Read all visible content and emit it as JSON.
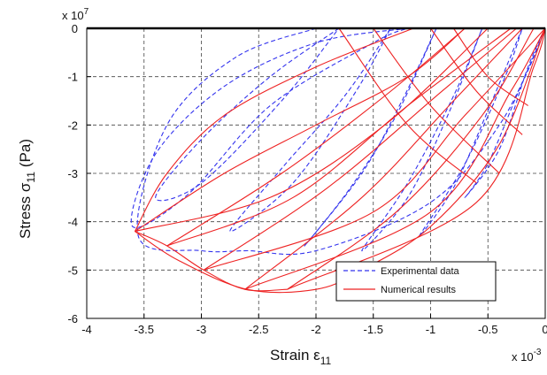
{
  "chart_data": {
    "type": "line",
    "xlabel": {
      "main": "Strain ε",
      "sub": "11"
    },
    "ylabel": {
      "main": "Stress σ",
      "sub": "11",
      "unit": "(Pa)"
    },
    "x_multiplier": {
      "base": "x 10",
      "exp": "-3"
    },
    "y_multiplier": {
      "base": "x 10",
      "exp": "7"
    },
    "xlim": [
      -4,
      0
    ],
    "ylim": [
      -6,
      0
    ],
    "xticks": [
      "-4",
      "-3.5",
      "-3",
      "-2.5",
      "-2",
      "-1.5",
      "-1",
      "-0.5",
      "0"
    ],
    "yticks": [
      "0",
      "-1",
      "-2",
      "-3",
      "-4",
      "-5",
      "-6"
    ],
    "grid": true,
    "legend_position": "bottom-right",
    "series": [
      {
        "name": "Experimental data",
        "color": "#3333ee",
        "style": "dashed",
        "curves": [
          [
            [
              0,
              0
            ],
            [
              -0.1,
              -0.6
            ],
            [
              -0.25,
              -1.4
            ],
            [
              -0.5,
              -2.8
            ],
            [
              -0.7,
              -3.5
            ],
            [
              -0.4,
              -2.5
            ],
            [
              -0.15,
              -0.8
            ],
            [
              0,
              0
            ]
          ],
          [
            [
              -0.2,
              0
            ],
            [
              -0.5,
              -1.7
            ],
            [
              -0.8,
              -3.3
            ],
            [
              -1.1,
              -4.3
            ],
            [
              -0.7,
              -2.8
            ],
            [
              -0.35,
              -1.0
            ],
            [
              -0.2,
              0
            ]
          ],
          [
            [
              -0.55,
              0
            ],
            [
              -0.85,
              -1.8
            ],
            [
              -1.2,
              -3.5
            ],
            [
              -1.6,
              -4.6
            ],
            [
              -1.2,
              -3.2
            ],
            [
              -0.8,
              -1.4
            ],
            [
              -0.55,
              0
            ]
          ],
          [
            [
              -0.95,
              0
            ],
            [
              -1.3,
              -1.8
            ],
            [
              -1.7,
              -3.3
            ],
            [
              -2.1,
              -4.5
            ],
            [
              -1.6,
              -3.0
            ],
            [
              -1.25,
              -1.5
            ],
            [
              -0.95,
              0
            ]
          ],
          [
            [
              -1.35,
              0
            ],
            [
              -1.75,
              -1.4
            ],
            [
              -2.3,
              -2.9
            ],
            [
              -2.75,
              -4.2
            ],
            [
              -2.2,
              -3.2
            ],
            [
              -1.65,
              -1.3
            ],
            [
              -1.35,
              0
            ]
          ],
          [
            [
              -1.8,
              0
            ],
            [
              -2.4,
              -1.0
            ],
            [
              -3.0,
              -2.3
            ],
            [
              -3.4,
              -3.5
            ],
            [
              -3.0,
              -3.2
            ],
            [
              -2.3,
              -1.5
            ],
            [
              -1.8,
              0
            ]
          ],
          [
            [
              -1.2,
              0
            ],
            [
              -2.0,
              -0.3
            ],
            [
              -2.8,
              -1.2
            ],
            [
              -3.4,
              -2.6
            ],
            [
              -3.6,
              -4.1
            ],
            [
              -3.1,
              -3.4
            ],
            [
              -2.4,
              -1.6
            ],
            [
              -1.5,
              -0.3
            ],
            [
              -1.2,
              0
            ]
          ],
          [
            [
              -2.0,
              0
            ],
            [
              -2.7,
              -0.6
            ],
            [
              -3.3,
              -2.0
            ],
            [
              -3.55,
              -4.3
            ],
            [
              -3.0,
              -4.6
            ],
            [
              -2.6,
              -4.6
            ],
            [
              -2.0,
              -4.6
            ],
            [
              -1.0,
              -3.6
            ],
            [
              -0.4,
              -2.0
            ],
            [
              -0.05,
              -0.3
            ]
          ]
        ]
      },
      {
        "name": "Numerical results",
        "color": "#ee2222",
        "style": "solid",
        "curves": [
          [
            [
              -1.15,
              0
            ],
            [
              -2.0,
              -0.8
            ],
            [
              -2.8,
              -1.8
            ],
            [
              -3.3,
              -3.0
            ],
            [
              -3.58,
              -4.2
            ]
          ],
          [
            [
              -3.58,
              -4.2
            ],
            [
              -3.2,
              -4.8
            ],
            [
              -2.6,
              -5.4
            ],
            [
              -2.0,
              -5.4
            ],
            [
              -1.6,
              -5.0
            ],
            [
              -1.0,
              -4.1
            ],
            [
              -0.4,
              -2.4
            ],
            [
              0,
              0
            ]
          ],
          [
            [
              -3.58,
              -4.2
            ],
            [
              -2.8,
              -3.0
            ],
            [
              -2.0,
              -2.0
            ],
            [
              -1.2,
              -1.0
            ],
            [
              -0.7,
              0
            ]
          ],
          [
            [
              -3.58,
              -4.2
            ],
            [
              -2.4,
              -3.5
            ],
            [
              -1.4,
              -2.0
            ],
            [
              -0.5,
              0
            ]
          ],
          [
            [
              -3.3,
              -4.5
            ],
            [
              -2.3,
              -3.0
            ],
            [
              -1.4,
              -1.4
            ],
            [
              -0.7,
              0
            ]
          ],
          [
            [
              -3.3,
              -4.5
            ],
            [
              -2.2,
              -3.5
            ],
            [
              -1.2,
              -1.6
            ],
            [
              -0.3,
              0
            ]
          ],
          [
            [
              -2.98,
              -5.0
            ],
            [
              -1.9,
              -3.3
            ],
            [
              -0.9,
              -1.3
            ],
            [
              -0.25,
              0
            ]
          ],
          [
            [
              -2.98,
              -5.0
            ],
            [
              -1.5,
              -3.8
            ],
            [
              -0.7,
              -1.8
            ],
            [
              0,
              0
            ]
          ],
          [
            [
              -2.62,
              -5.4
            ],
            [
              -1.6,
              -3.5
            ],
            [
              -0.8,
              -1.5
            ],
            [
              -0.2,
              0
            ]
          ],
          [
            [
              -2.62,
              -5.4
            ],
            [
              -1.0,
              -3.8
            ],
            [
              -0.3,
              -1.3
            ],
            [
              0,
              0
            ]
          ],
          [
            [
              -2.25,
              -5.4
            ],
            [
              -1.3,
              -3.8
            ],
            [
              -0.55,
              -1.8
            ],
            [
              -0.1,
              0
            ]
          ],
          [
            [
              -2.25,
              -5.4
            ],
            [
              -0.6,
              -3.6
            ],
            [
              -0.1,
              -0.8
            ],
            [
              0,
              0
            ]
          ],
          [
            [
              -1.8,
              0
            ],
            [
              -1.2,
              -2.0
            ],
            [
              -0.6,
              -3.2
            ]
          ],
          [
            [
              -1.5,
              0
            ],
            [
              -1.0,
              -1.6
            ],
            [
              -0.4,
              -3.0
            ]
          ],
          [
            [
              -1.0,
              0
            ],
            [
              -0.6,
              -1.3
            ],
            [
              -0.2,
              -2.2
            ]
          ],
          [
            [
              -0.8,
              0
            ],
            [
              -0.5,
              -1.0
            ],
            [
              -0.15,
              -1.6
            ]
          ],
          [
            [
              -3.58,
              -4.2
            ],
            [
              -3.3,
              -4.5
            ],
            [
              -2.98,
              -5.0
            ],
            [
              -2.62,
              -5.4
            ],
            [
              -2.25,
              -5.4
            ]
          ]
        ]
      }
    ]
  }
}
